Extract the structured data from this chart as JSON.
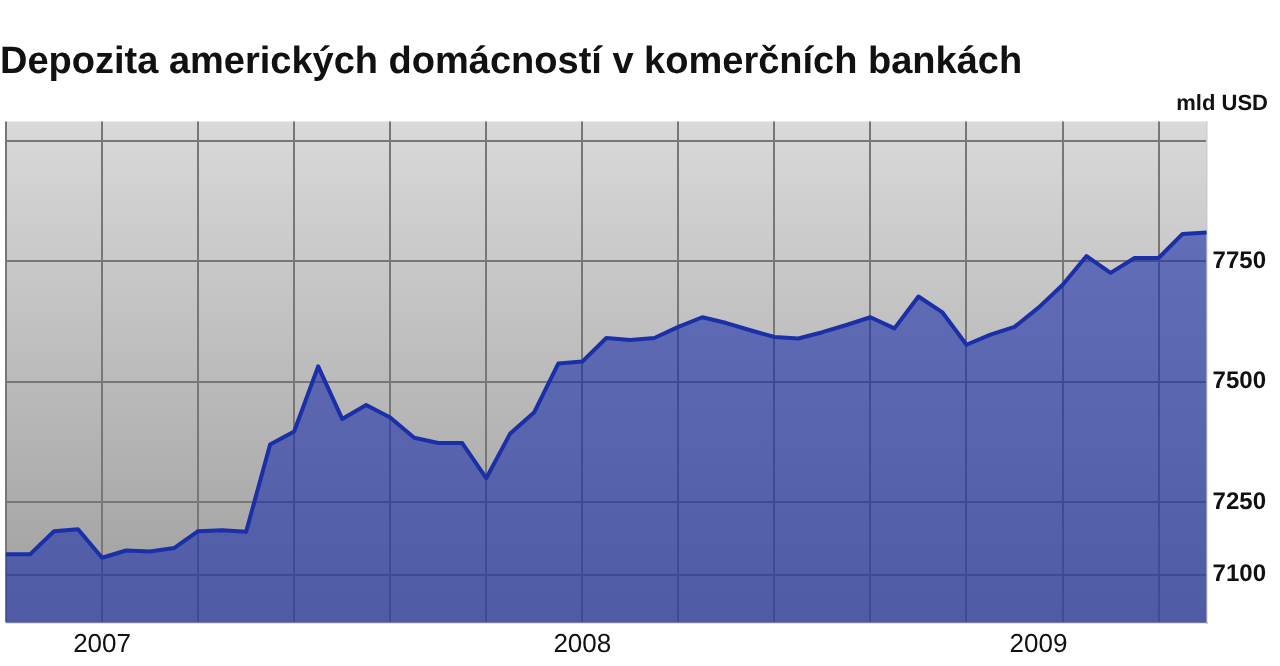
{
  "chart_data": {
    "type": "area",
    "title": "Depozita amerických domácností v komerčních bankách",
    "ylabel": "mld USD",
    "categories": [
      null,
      null,
      null,
      null,
      "2007",
      null,
      null,
      null,
      null,
      null,
      null,
      null,
      null,
      null,
      null,
      null,
      null,
      null,
      null,
      null,
      null,
      null,
      null,
      null,
      "2008",
      null,
      null,
      null,
      null,
      null,
      null,
      null,
      null,
      null,
      null,
      null,
      null,
      null,
      null,
      null,
      null,
      null,
      null,
      "2009",
      null,
      null,
      null,
      null,
      null,
      null,
      null
    ],
    "series": [
      {
        "color": "#1a2fa8",
        "values": [
          7142,
          7142,
          7190,
          7194,
          7135,
          7150,
          7148,
          7155,
          7190,
          7192,
          7189,
          7370,
          7397,
          7532,
          7423,
          7452,
          7426,
          7384,
          7373,
          7373,
          7300,
          7393,
          7437,
          7538,
          7542,
          7591,
          7587,
          7591,
          7614,
          7634,
          7622,
          7607,
          7593,
          7590,
          7603,
          7618,
          7634,
          7611,
          7677,
          7644,
          7577,
          7598,
          7614,
          7654,
          7701,
          7761,
          7726,
          7757,
          7757,
          7807,
          7810
        ]
      }
    ],
    "ylim": [
      7000,
      8040
    ],
    "yticks": [
      7100,
      7250,
      7500,
      7750,
      {
        "value": 8000,
        "label": null
      }
    ],
    "grid": true,
    "marker": "none",
    "legend": false
  }
}
